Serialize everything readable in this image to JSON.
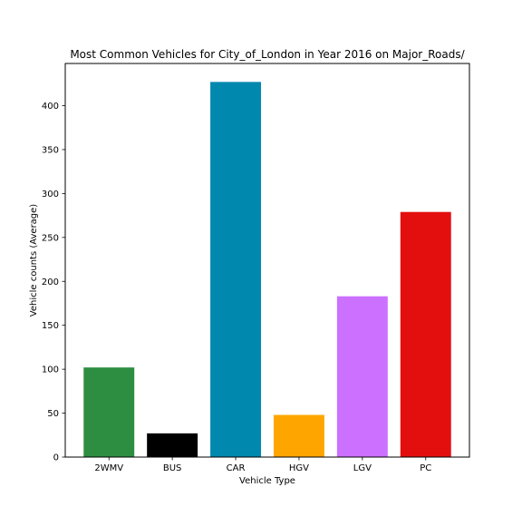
{
  "chart_data": {
    "type": "bar",
    "title": "Most Common Vehicles for City_of_London in Year 2016 on Major_Roads/",
    "xlabel": "Vehicle Type",
    "ylabel": "Vehicle counts (Average)",
    "categories": [
      "2WMV",
      "BUS",
      "CAR",
      "HGV",
      "LGV",
      "PC"
    ],
    "values": [
      102,
      27,
      427,
      48,
      183,
      279
    ],
    "colors": [
      "#2d8e41",
      "#000000",
      "#0088ae",
      "#ffa500",
      "#cc70ff",
      "#e30f0f"
    ],
    "ylim": [
      0,
      448
    ],
    "yticks": [
      0,
      50,
      100,
      150,
      200,
      250,
      300,
      350,
      400
    ],
    "grid": false,
    "legend": "none"
  }
}
